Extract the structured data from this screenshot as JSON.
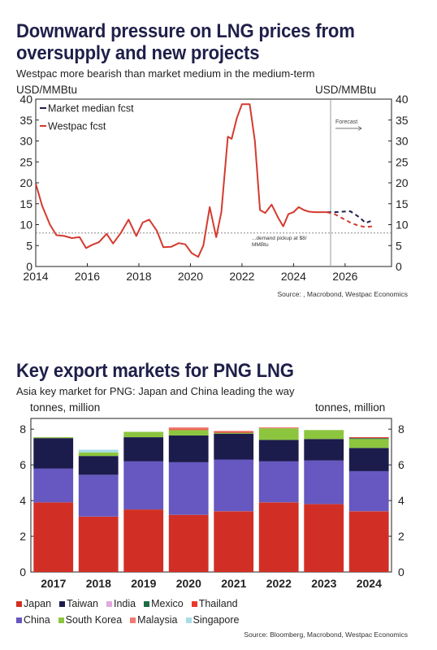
{
  "chart1": {
    "title": "Downward pressure on LNG prices from oversupply and new projects",
    "subtitle": "Westpac more bearish than market medium in the medium-term",
    "source": "Source: , Macrobond, Westpac Economics",
    "y_unit_left": "USD/MMBtu",
    "y_unit_right": "USD/MMBtu",
    "forecast_label": "Forecast",
    "annotation": "...demand pickup at $8/ MMBtu",
    "annotation_line1": "...demand pickup at $8/",
    "annotation_line2": "MMBtu",
    "legend": [
      "Market median fcst",
      "Westpac fcst"
    ]
  },
  "chart2": {
    "title": "Key export markets for PNG LNG",
    "subtitle": "Asia key market for PNG: Japan and China leading the way",
    "source": "Source: Bloomberg, Macrobond, Westpac Economics",
    "y_unit_left": "tonnes, million",
    "y_unit_right": "tonnes, million"
  },
  "chart_data": [
    {
      "type": "line",
      "title": "Downward pressure on LNG prices from oversupply and new projects",
      "subtitle": "Westpac more bearish than market medium in the medium-term",
      "xlabel": "",
      "ylabel": "USD/MMBtu",
      "xlim": [
        2014,
        2027.8
      ],
      "ylim": [
        0,
        40
      ],
      "x_ticks": [
        "2014",
        "2016",
        "2018",
        "2020",
        "2022",
        "2024",
        "2026"
      ],
      "y_ticks": [
        "0",
        "5",
        "10",
        "15",
        "20",
        "25",
        "30",
        "35",
        "40"
      ],
      "forecast_start": 2025.3,
      "reference_line": 8,
      "series": [
        {
          "name": "Westpac fcst",
          "color": "#d43a2f",
          "x": [
            2014.0,
            2014.25,
            2014.55,
            2014.8,
            2015.1,
            2015.4,
            2015.7,
            2015.95,
            2016.2,
            2016.45,
            2016.75,
            2017.0,
            2017.3,
            2017.6,
            2017.9,
            2018.15,
            2018.4,
            2018.7,
            2018.95,
            2019.25,
            2019.55,
            2019.8,
            2020.05,
            2020.3,
            2020.5,
            2020.75,
            2021.0,
            2021.2,
            2021.45,
            2021.6,
            2021.8,
            2022.0,
            2022.3,
            2022.5,
            2022.7,
            2022.9,
            2023.15,
            2023.4,
            2023.6,
            2023.8,
            2024.0,
            2024.2,
            2024.4,
            2024.6,
            2024.8,
            2025.0,
            2025.3
          ],
          "y": [
            19.8,
            14.5,
            10.0,
            7.5,
            7.3,
            6.8,
            7.0,
            4.4,
            5.2,
            5.8,
            7.8,
            5.5,
            8.0,
            11.2,
            7.3,
            10.5,
            11.2,
            8.5,
            4.6,
            4.7,
            5.6,
            5.3,
            3.2,
            2.3,
            5.0,
            14.2,
            7.0,
            13.0,
            31.0,
            30.5,
            35.5,
            38.8,
            38.8,
            30.0,
            13.5,
            12.8,
            14.8,
            11.7,
            9.6,
            12.5,
            13.0,
            14.2,
            13.5,
            13.1,
            13.0,
            13.0,
            13.0
          ]
        },
        {
          "name": "Market median fcst",
          "color": "#1f1f4a",
          "dashed": true,
          "x": [
            2025.3,
            2025.6,
            2025.9,
            2026.2,
            2026.5,
            2026.8,
            2027.05
          ],
          "y": [
            13.0,
            13.0,
            13.1,
            13.2,
            12.0,
            10.4,
            11.0
          ]
        },
        {
          "name": "Westpac fcst",
          "color": "#d43a2f",
          "dashed": true,
          "x": [
            2025.3,
            2025.6,
            2025.9,
            2026.2,
            2026.5,
            2026.8,
            2027.05
          ],
          "y": [
            13.0,
            12.5,
            11.5,
            10.5,
            9.8,
            9.4,
            9.6
          ]
        }
      ]
    },
    {
      "type": "bar",
      "stacked": true,
      "title": "Key export markets for PNG LNG",
      "subtitle": "Asia key market for PNG: Japan and China leading the way",
      "xlabel": "",
      "ylabel": "tonnes, million",
      "ylim": [
        0,
        8.6
      ],
      "y_ticks": [
        "0",
        "2",
        "4",
        "6",
        "8"
      ],
      "categories": [
        "2017",
        "2018",
        "2019",
        "2020",
        "2021",
        "2022",
        "2023",
        "2024"
      ],
      "series": [
        {
          "name": "Japan",
          "color": "#d12f25",
          "values": [
            3.9,
            3.1,
            3.5,
            3.2,
            3.4,
            3.9,
            3.8,
            3.4
          ]
        },
        {
          "name": "China",
          "color": "#6658c0",
          "values": [
            1.9,
            2.35,
            2.7,
            2.95,
            2.9,
            2.3,
            2.45,
            2.25
          ]
        },
        {
          "name": "Taiwan",
          "color": "#1c1c4c",
          "values": [
            1.7,
            1.05,
            1.35,
            1.5,
            1.45,
            1.2,
            1.2,
            1.3
          ]
        },
        {
          "name": "South Korea",
          "color": "#8cc63e",
          "values": [
            0.05,
            0.2,
            0.3,
            0.3,
            0.05,
            0.65,
            0.5,
            0.5
          ]
        },
        {
          "name": "Mexico",
          "color": "#1e6b45",
          "values": [
            0.0,
            0.0,
            0.0,
            0.0,
            0.0,
            0.0,
            0.0,
            0.05
          ]
        },
        {
          "name": "Thailand",
          "color": "#e8392a",
          "values": [
            0.0,
            0.0,
            0.0,
            0.05,
            0.05,
            0.0,
            0.0,
            0.05
          ]
        },
        {
          "name": "Malaysia",
          "color": "#f07a72",
          "values": [
            0.0,
            0.0,
            0.0,
            0.1,
            0.05,
            0.05,
            0.0,
            0.0
          ]
        },
        {
          "name": "India",
          "color": "#e3a8e0",
          "values": [
            0.0,
            0.0,
            0.0,
            0.0,
            0.0,
            0.0,
            0.0,
            0.0
          ]
        },
        {
          "name": "Singapore",
          "color": "#a9dce6",
          "values": [
            0.0,
            0.15,
            0.0,
            0.0,
            0.0,
            0.0,
            0.0,
            0.0
          ]
        }
      ],
      "legend_rows": [
        [
          {
            "name": "Japan",
            "color": "#d12f25"
          },
          {
            "name": "Taiwan",
            "color": "#1c1c4c"
          },
          {
            "name": "India",
            "color": "#e3a8e0"
          },
          {
            "name": "Mexico",
            "color": "#1e6b45"
          },
          {
            "name": "Thailand",
            "color": "#e8392a"
          }
        ],
        [
          {
            "name": "China",
            "color": "#6658c0"
          },
          {
            "name": "South Korea",
            "color": "#8cc63e"
          },
          {
            "name": "Malaysia",
            "color": "#f07a72"
          },
          {
            "name": "Singapore",
            "color": "#a9dce6"
          }
        ]
      ]
    }
  ]
}
